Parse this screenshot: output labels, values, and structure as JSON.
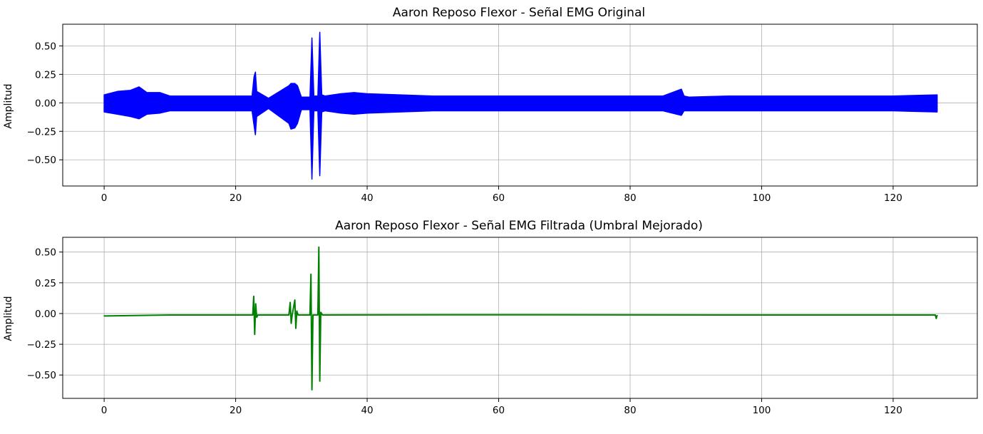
{
  "chart_data": [
    {
      "type": "line",
      "title": "Aaron Reposo Flexor - Señal EMG Original",
      "xlabel": "",
      "ylabel": "Amplitud",
      "xlim": [
        -6.3,
        132.8
      ],
      "ylim": [
        -0.73,
        0.69
      ],
      "xticks": [
        0,
        20,
        40,
        60,
        80,
        100,
        120
      ],
      "xtick_labels": [
        "0",
        "20",
        "40",
        "60",
        "80",
        "100",
        "120"
      ],
      "yticks": [
        -0.5,
        -0.25,
        0.0,
        0.25,
        0.5
      ],
      "ytick_labels": [
        "−0.50",
        "−0.25",
        "0.00",
        "0.25",
        "0.50"
      ],
      "grid": true,
      "color": "#0000ff",
      "series": [
        {
          "x": [
            0,
            2,
            4,
            5.3,
            6.5,
            8.5,
            10,
            15,
            20,
            22.5,
            22.8,
            23.0,
            23.2,
            25,
            28.1,
            28.4,
            29.0,
            29.4,
            30,
            31.3,
            31.6,
            31.9,
            32.5,
            32.8,
            33.1,
            33.6,
            36,
            38,
            40,
            45,
            50,
            60,
            70,
            80,
            85,
            87.8,
            88.2,
            89,
            95,
            100,
            110,
            120,
            126.7
          ],
          "envelope": [
            0.07,
            0.1,
            0.11,
            0.14,
            0.09,
            0.09,
            0.06,
            0.06,
            0.06,
            0.06,
            0.23,
            0.27,
            0.1,
            0.04,
            0.15,
            0.17,
            0.17,
            0.15,
            0.05,
            0.05,
            0.57,
            0.06,
            0.06,
            0.62,
            0.07,
            0.06,
            0.08,
            0.09,
            0.08,
            0.07,
            0.06,
            0.06,
            0.06,
            0.06,
            0.06,
            0.12,
            0.06,
            0.05,
            0.06,
            0.06,
            0.06,
            0.06,
            0.07
          ],
          "envelope_neg": [
            -0.08,
            -0.1,
            -0.12,
            -0.14,
            -0.1,
            -0.09,
            -0.07,
            -0.07,
            -0.07,
            -0.07,
            -0.2,
            -0.28,
            -0.12,
            -0.05,
            -0.18,
            -0.23,
            -0.22,
            -0.18,
            -0.06,
            -0.06,
            -0.67,
            -0.07,
            -0.07,
            -0.64,
            -0.08,
            -0.07,
            -0.09,
            -0.1,
            -0.09,
            -0.08,
            -0.07,
            -0.07,
            -0.07,
            -0.07,
            -0.07,
            -0.11,
            -0.07,
            -0.07,
            -0.07,
            -0.07,
            -0.07,
            -0.07,
            -0.08
          ]
        }
      ]
    },
    {
      "type": "line",
      "title": "Aaron Reposo Flexor - Señal EMG Filtrada (Umbral Mejorado)",
      "xlabel": "",
      "ylabel": "Amplitud",
      "xlim": [
        -6.3,
        132.8
      ],
      "ylim": [
        -0.69,
        0.62
      ],
      "xticks": [
        0,
        20,
        40,
        60,
        80,
        100,
        120
      ],
      "xtick_labels": [
        "0",
        "20",
        "40",
        "60",
        "80",
        "100",
        "120"
      ],
      "yticks": [
        -0.5,
        -0.25,
        0.0,
        0.25,
        0.5
      ],
      "ytick_labels": [
        "−0.50",
        "−0.25",
        "0.00",
        "0.25",
        "0.50"
      ],
      "grid": true,
      "color": "#008000",
      "series": [
        {
          "x": [
            0,
            0.05,
            10,
            22.6,
            22.75,
            22.9,
            23.05,
            23.2,
            23.4,
            28.1,
            28.3,
            28.45,
            28.6,
            29.0,
            29.15,
            29.3,
            29.5,
            31.3,
            31.45,
            31.6,
            31.75,
            32.5,
            32.65,
            32.8,
            32.95,
            33.2,
            60,
            100,
            126.4,
            126.55,
            126.7
          ],
          "y": [
            -0.015,
            -0.02,
            -0.012,
            -0.012,
            0.14,
            -0.17,
            0.08,
            -0.03,
            -0.012,
            -0.012,
            0.09,
            -0.08,
            -0.012,
            0.11,
            -0.12,
            0.02,
            -0.012,
            -0.012,
            0.32,
            -0.62,
            -0.012,
            -0.012,
            0.54,
            -0.55,
            0.01,
            -0.012,
            -0.01,
            -0.012,
            -0.012,
            -0.04,
            -0.012
          ]
        }
      ]
    }
  ]
}
